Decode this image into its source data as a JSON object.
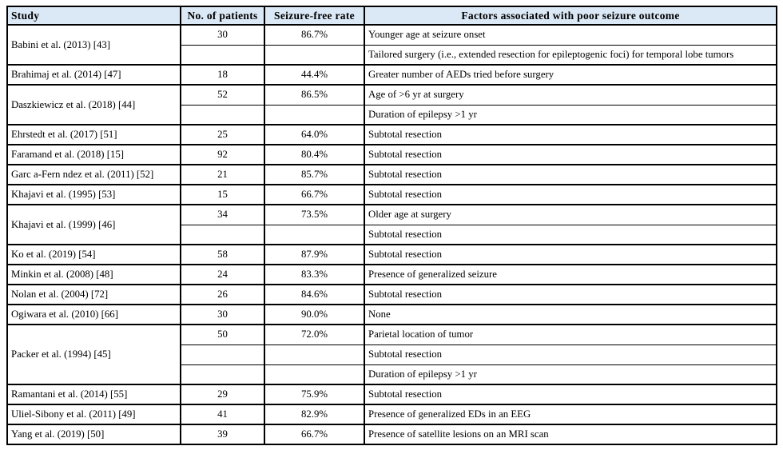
{
  "colors": {
    "header_bg": "#dbe8f5",
    "border": "#000000",
    "text": "#000000"
  },
  "table": {
    "columns": [
      {
        "label": "Study"
      },
      {
        "label": "No. of patients"
      },
      {
        "label": "Seizure-free rate"
      },
      {
        "label": "Factors associated with poor seizure outcome"
      }
    ],
    "groups": [
      {
        "study": "Babini et al. (2013) [43]",
        "patients": "30",
        "rate": "86.7%",
        "factors": [
          "Younger age at seizure onset",
          "Tailored surgery (i.e., extended resection for epileptogenic foci) for temporal lobe tumors"
        ]
      },
      {
        "study": "Brahimaj et al. (2014) [47]",
        "patients": "18",
        "rate": "44.4%",
        "factors": [
          "Greater number of AEDs tried before surgery"
        ]
      },
      {
        "study": "Daszkiewicz et al. (2018) [44]",
        "patients": "52",
        "rate": "86.5%",
        "factors": [
          "Age of >6 yr at surgery",
          "Duration of epilepsy >1 yr"
        ]
      },
      {
        "study": "Ehrstedt et al. (2017) [51]",
        "patients": "25",
        "rate": "64.0%",
        "factors": [
          "Subtotal resection"
        ]
      },
      {
        "study": "Faramand et al. (2018) [15]",
        "patients": "92",
        "rate": "80.4%",
        "factors": [
          "Subtotal resection"
        ]
      },
      {
        "study": "Garc a-Fern ndez et al. (2011) [52]",
        "patients": "21",
        "rate": "85.7%",
        "factors": [
          "Subtotal resection"
        ]
      },
      {
        "study": "Khajavi et al. (1995) [53]",
        "patients": "15",
        "rate": "66.7%",
        "factors": [
          "Subtotal resection"
        ]
      },
      {
        "study": "Khajavi et al. (1999) [46]",
        "patients": "34",
        "rate": "73.5%",
        "factors": [
          "Older age at surgery",
          "Subtotal resection"
        ]
      },
      {
        "study": "Ko et al. (2019) [54]",
        "patients": "58",
        "rate": "87.9%",
        "factors": [
          "Subtotal resection"
        ]
      },
      {
        "study": "Minkin et al. (2008) [48]",
        "patients": "24",
        "rate": "83.3%",
        "factors": [
          "Presence of generalized seizure"
        ]
      },
      {
        "study": "Nolan et al. (2004) [72]",
        "patients": "26",
        "rate": "84.6%",
        "factors": [
          "Subtotal resection"
        ]
      },
      {
        "study": "Ogiwara et al. (2010) [66]",
        "patients": "30",
        "rate": "90.0%",
        "factors": [
          "None"
        ]
      },
      {
        "study": "Packer et al. (1994) [45]",
        "patients": "50",
        "rate": "72.0%",
        "factors": [
          "Parietal location of tumor",
          "Subtotal resection",
          "Duration of epilepsy >1 yr"
        ]
      },
      {
        "study": "Ramantani et al. (2014) [55]",
        "patients": "29",
        "rate": "75.9%",
        "factors": [
          "Subtotal resection"
        ]
      },
      {
        "study": "Uliel-Sibony et al. (2011) [49]",
        "patients": "41",
        "rate": "82.9%",
        "factors": [
          "Presence of generalized EDs in an EEG"
        ]
      },
      {
        "study": "Yang et al. (2019) [50]",
        "patients": "39",
        "rate": "66.7%",
        "factors": [
          "Presence of satellite lesions on an MRI scan"
        ]
      }
    ]
  }
}
